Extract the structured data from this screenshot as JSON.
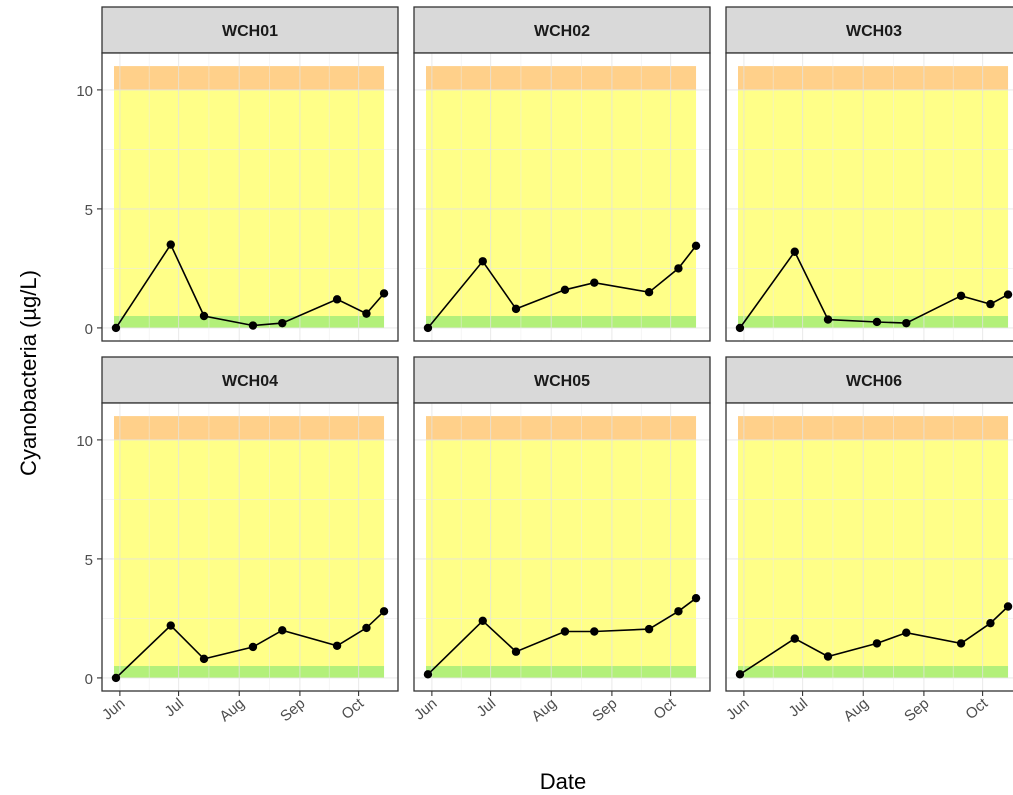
{
  "chart_data": {
    "type": "line",
    "facet_layout": "2 rows x 3 columns",
    "xlabel": "Date",
    "ylabel": "Cyanobacteria (µg/L)",
    "ylim": [
      0,
      11
    ],
    "y_ticks": [
      0,
      5,
      10
    ],
    "x_tick_labels": [
      "Jun",
      "Jul",
      "Aug",
      "Sep",
      "Oct"
    ],
    "x_tick_dates": [
      "2023-06-01",
      "2023-07-01",
      "2023-08-01",
      "2023-09-01",
      "2023-10-01"
    ],
    "xlim": [
      "2023-05-29",
      "2023-10-15"
    ],
    "grid": true,
    "bands": [
      {
        "from": 0,
        "to": 0.5,
        "color": "#b3f07a"
      },
      {
        "from": 0.5,
        "to": 10,
        "color": "#ffff88"
      },
      {
        "from": 10,
        "to": 11,
        "color": "#ffd08a"
      }
    ],
    "line_color": "#000000",
    "panels": [
      {
        "name": "WCH01",
        "x": [
          "2023-05-30",
          "2023-06-27",
          "2023-07-14",
          "2023-08-08",
          "2023-08-23",
          "2023-09-20",
          "2023-10-05",
          "2023-10-14"
        ],
        "y": [
          0.0,
          3.5,
          0.5,
          0.1,
          0.2,
          1.2,
          0.6,
          1.45
        ]
      },
      {
        "name": "WCH02",
        "x": [
          "2023-05-30",
          "2023-06-27",
          "2023-07-14",
          "2023-08-08",
          "2023-08-23",
          "2023-09-20",
          "2023-10-05",
          "2023-10-14"
        ],
        "y": [
          0.0,
          2.8,
          0.8,
          1.6,
          1.9,
          1.5,
          2.5,
          3.45
        ]
      },
      {
        "name": "WCH03",
        "x": [
          "2023-05-30",
          "2023-06-27",
          "2023-07-14",
          "2023-08-08",
          "2023-08-23",
          "2023-09-20",
          "2023-10-05",
          "2023-10-14"
        ],
        "y": [
          0.0,
          3.2,
          0.35,
          0.25,
          0.2,
          1.35,
          1.0,
          1.4
        ]
      },
      {
        "name": "WCH04",
        "x": [
          "2023-05-30",
          "2023-06-27",
          "2023-07-14",
          "2023-08-08",
          "2023-08-23",
          "2023-09-20",
          "2023-10-05",
          "2023-10-14"
        ],
        "y": [
          0.0,
          2.2,
          0.8,
          1.3,
          2.0,
          1.35,
          2.1,
          2.8
        ]
      },
      {
        "name": "WCH05",
        "x": [
          "2023-05-30",
          "2023-06-27",
          "2023-07-14",
          "2023-08-08",
          "2023-08-23",
          "2023-09-20",
          "2023-10-05",
          "2023-10-14"
        ],
        "y": [
          0.15,
          2.4,
          1.1,
          1.95,
          1.95,
          2.05,
          2.8,
          3.35
        ]
      },
      {
        "name": "WCH06",
        "x": [
          "2023-05-30",
          "2023-06-27",
          "2023-07-14",
          "2023-08-08",
          "2023-08-23",
          "2023-09-20",
          "2023-10-05",
          "2023-10-14"
        ],
        "y": [
          0.15,
          1.65,
          0.9,
          1.45,
          1.9,
          1.45,
          2.3,
          3.0
        ]
      }
    ]
  }
}
